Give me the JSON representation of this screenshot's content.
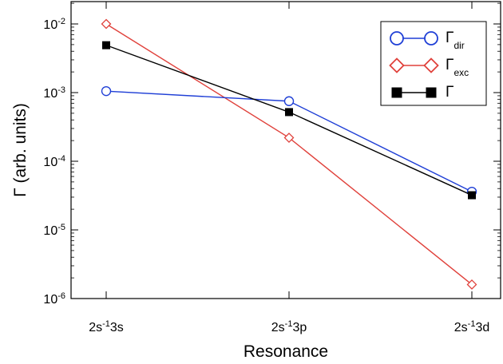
{
  "chart_data": {
    "type": "line",
    "y_scale": "log",
    "categories": [
      "2s-13s",
      "2s-13p",
      "2s-13d"
    ],
    "ylim": [
      1e-06,
      0.01
    ],
    "xlabel": "Resonance",
    "ylabel": "Γ (arb. units)",
    "y_ticks": [
      {
        "base": "10",
        "exp": "-2"
      },
      {
        "base": "10",
        "exp": "-3"
      },
      {
        "base": "10",
        "exp": "-4"
      },
      {
        "base": "10",
        "exp": "-5"
      },
      {
        "base": "10",
        "exp": "-6"
      }
    ],
    "x_ticks": [
      {
        "pre": "2s",
        "sup": "-1",
        "post": "3s"
      },
      {
        "pre": "2s",
        "sup": "-1",
        "post": "3p"
      },
      {
        "pre": "2s",
        "sup": "-1",
        "post": "3d"
      }
    ],
    "legend_position": "top-right",
    "grid": false,
    "series": [
      {
        "name": "Γdir",
        "legend_main": "Γ",
        "legend_sub": "dir",
        "color": "#1f3fd6",
        "marker": "open-circle",
        "values": [
          0.00105,
          0.00075,
          3.6e-05
        ]
      },
      {
        "name": "Γexc",
        "legend_main": "Γ",
        "legend_sub": "exc",
        "color": "#e0413b",
        "marker": "open-diamond",
        "values": [
          0.01,
          0.00022,
          1.6e-06
        ]
      },
      {
        "name": "Γ",
        "legend_main": "Γ",
        "legend_sub": "",
        "color": "#000000",
        "marker": "filled-square",
        "values": [
          0.0049,
          0.00052,
          3.2e-05
        ]
      }
    ]
  }
}
